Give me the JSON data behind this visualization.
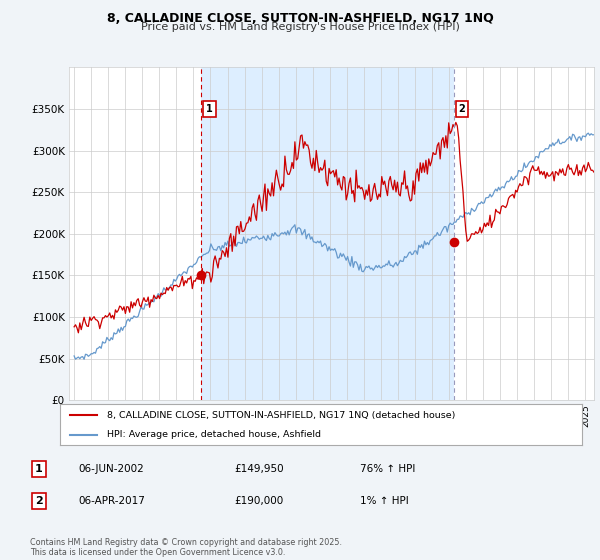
{
  "title_line1": "8, CALLADINE CLOSE, SUTTON-IN-ASHFIELD, NG17 1NQ",
  "title_line2": "Price paid vs. HM Land Registry's House Price Index (HPI)",
  "legend_label_red": "8, CALLADINE CLOSE, SUTTON-IN-ASHFIELD, NG17 1NQ (detached house)",
  "legend_label_blue": "HPI: Average price, detached house, Ashfield",
  "marker1_date": "06-JUN-2002",
  "marker1_price": "£149,950",
  "marker1_hpi": "76% ↑ HPI",
  "marker2_date": "06-APR-2017",
  "marker2_price": "£190,000",
  "marker2_hpi": "1% ↑ HPI",
  "footer": "Contains HM Land Registry data © Crown copyright and database right 2025.\nThis data is licensed under the Open Government Licence v3.0.",
  "red_color": "#cc0000",
  "blue_color": "#6699cc",
  "shade_color": "#ddeeff",
  "background_color": "#f0f4f8",
  "plot_bg_color": "#ffffff",
  "ylim": [
    0,
    400000
  ],
  "yticks": [
    0,
    50000,
    100000,
    150000,
    200000,
    250000,
    300000,
    350000
  ],
  "ytick_labels": [
    "£0",
    "£50K",
    "£100K",
    "£150K",
    "£200K",
    "£250K",
    "£300K",
    "£350K"
  ],
  "marker1_x": 2002.43,
  "marker1_y": 149950,
  "marker2_x": 2017.26,
  "marker2_y": 190000,
  "vline1_x": 2002.43,
  "vline2_x": 2017.26,
  "xmin": 1995,
  "xmax": 2025.5
}
